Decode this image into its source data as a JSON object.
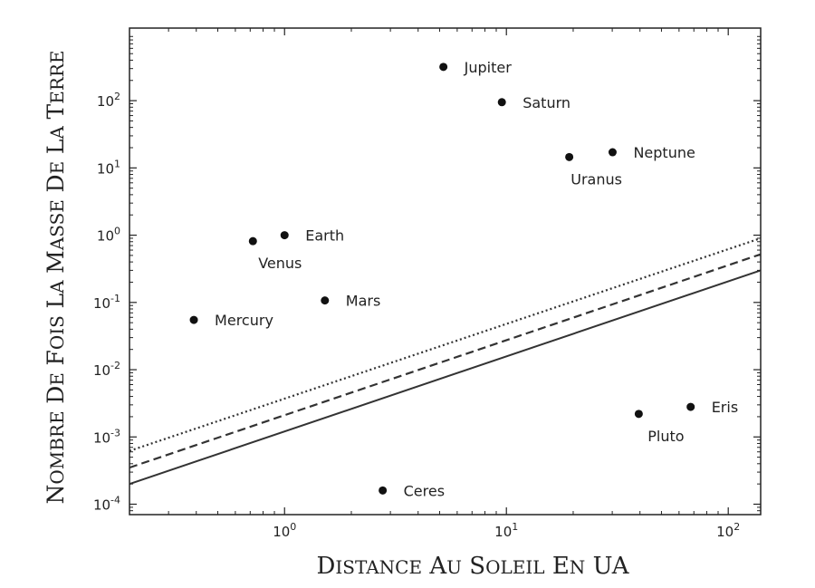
{
  "chart_data": {
    "type": "scatter",
    "title": "",
    "xlabel": "Distance au Soleil en UA",
    "ylabel": "Nombre de fois la masse de la Terre",
    "xscale": "log",
    "yscale": "log",
    "xlim": [
      0.2,
      140
    ],
    "ylim": [
      7e-05,
      1200
    ],
    "grid": false,
    "x_ticks": [
      {
        "value": 1,
        "base": "10",
        "exp": "0"
      },
      {
        "value": 10,
        "base": "10",
        "exp": "1"
      },
      {
        "value": 100,
        "base": "10",
        "exp": "2"
      }
    ],
    "y_ticks": [
      {
        "value": 0.0001,
        "base": "10",
        "exp": "-4"
      },
      {
        "value": 0.001,
        "base": "10",
        "exp": "-3"
      },
      {
        "value": 0.01,
        "base": "10",
        "exp": "-2"
      },
      {
        "value": 0.1,
        "base": "10",
        "exp": "-1"
      },
      {
        "value": 1,
        "base": "10",
        "exp": "0"
      },
      {
        "value": 10,
        "base": "10",
        "exp": "1"
      },
      {
        "value": 100,
        "base": "10",
        "exp": "2"
      }
    ],
    "points": [
      {
        "label": "Mercury",
        "x": 0.39,
        "y": 0.055,
        "label_pos": "right"
      },
      {
        "label": "Venus",
        "x": 0.72,
        "y": 0.815,
        "label_pos": "below"
      },
      {
        "label": "Earth",
        "x": 1.0,
        "y": 1.0,
        "label_pos": "right"
      },
      {
        "label": "Mars",
        "x": 1.52,
        "y": 0.107,
        "label_pos": "right"
      },
      {
        "label": "Ceres",
        "x": 2.77,
        "y": 0.00016,
        "label_pos": "right"
      },
      {
        "label": "Jupiter",
        "x": 5.2,
        "y": 318,
        "label_pos": "right"
      },
      {
        "label": "Saturn",
        "x": 9.54,
        "y": 95,
        "label_pos": "right"
      },
      {
        "label": "Uranus",
        "x": 19.2,
        "y": 14.5,
        "label_pos": "below"
      },
      {
        "label": "Neptune",
        "x": 30.1,
        "y": 17.1,
        "label_pos": "right"
      },
      {
        "label": "Pluto",
        "x": 39.5,
        "y": 0.0022,
        "label_pos": "below"
      },
      {
        "label": "Eris",
        "x": 67.7,
        "y": 0.0028,
        "label_pos": "right"
      }
    ],
    "lines": [
      {
        "style": "dotted",
        "points": [
          [
            0.2,
            0.00062
          ],
          [
            140,
            0.9
          ]
        ]
      },
      {
        "style": "dashed",
        "points": [
          [
            0.2,
            0.00035
          ],
          [
            140,
            0.52
          ]
        ]
      },
      {
        "style": "solid",
        "points": [
          [
            0.2,
            0.0002
          ],
          [
            140,
            0.3
          ]
        ]
      }
    ]
  }
}
